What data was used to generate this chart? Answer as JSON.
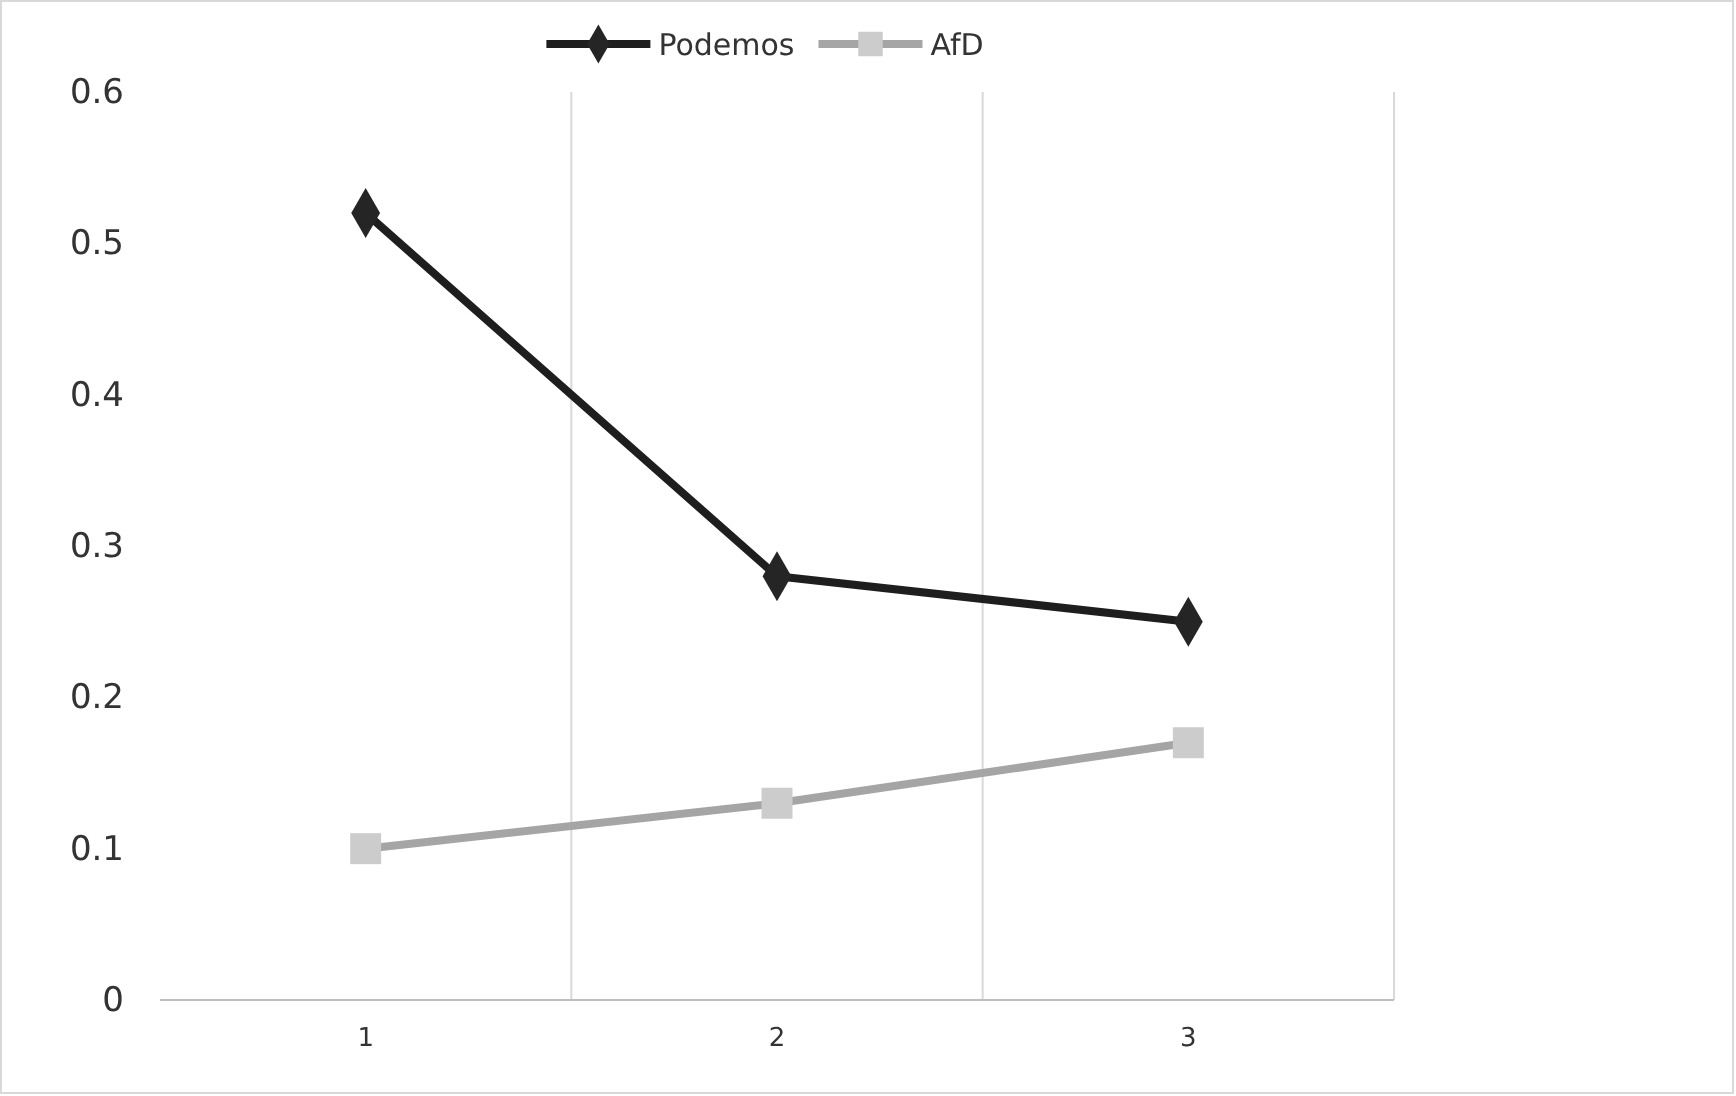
{
  "chart_data": {
    "type": "line",
    "categories": [
      "1",
      "2",
      "3"
    ],
    "series": [
      {
        "name": "Podemos",
        "color": "#1e1e1e",
        "marker": "diamond",
        "values": [
          0.52,
          0.28,
          0.25
        ]
      },
      {
        "name": "AfD",
        "color": "#a5a5a5",
        "marker": "square",
        "values": [
          0.1,
          0.13,
          0.17
        ]
      }
    ],
    "ylim": [
      0,
      0.6
    ],
    "yticks": [
      {
        "value": 0,
        "label": "0"
      },
      0.1,
      0.2,
      0.3,
      0.4,
      0.5,
      0.6
    ],
    "grid": "x",
    "legend": "top"
  }
}
